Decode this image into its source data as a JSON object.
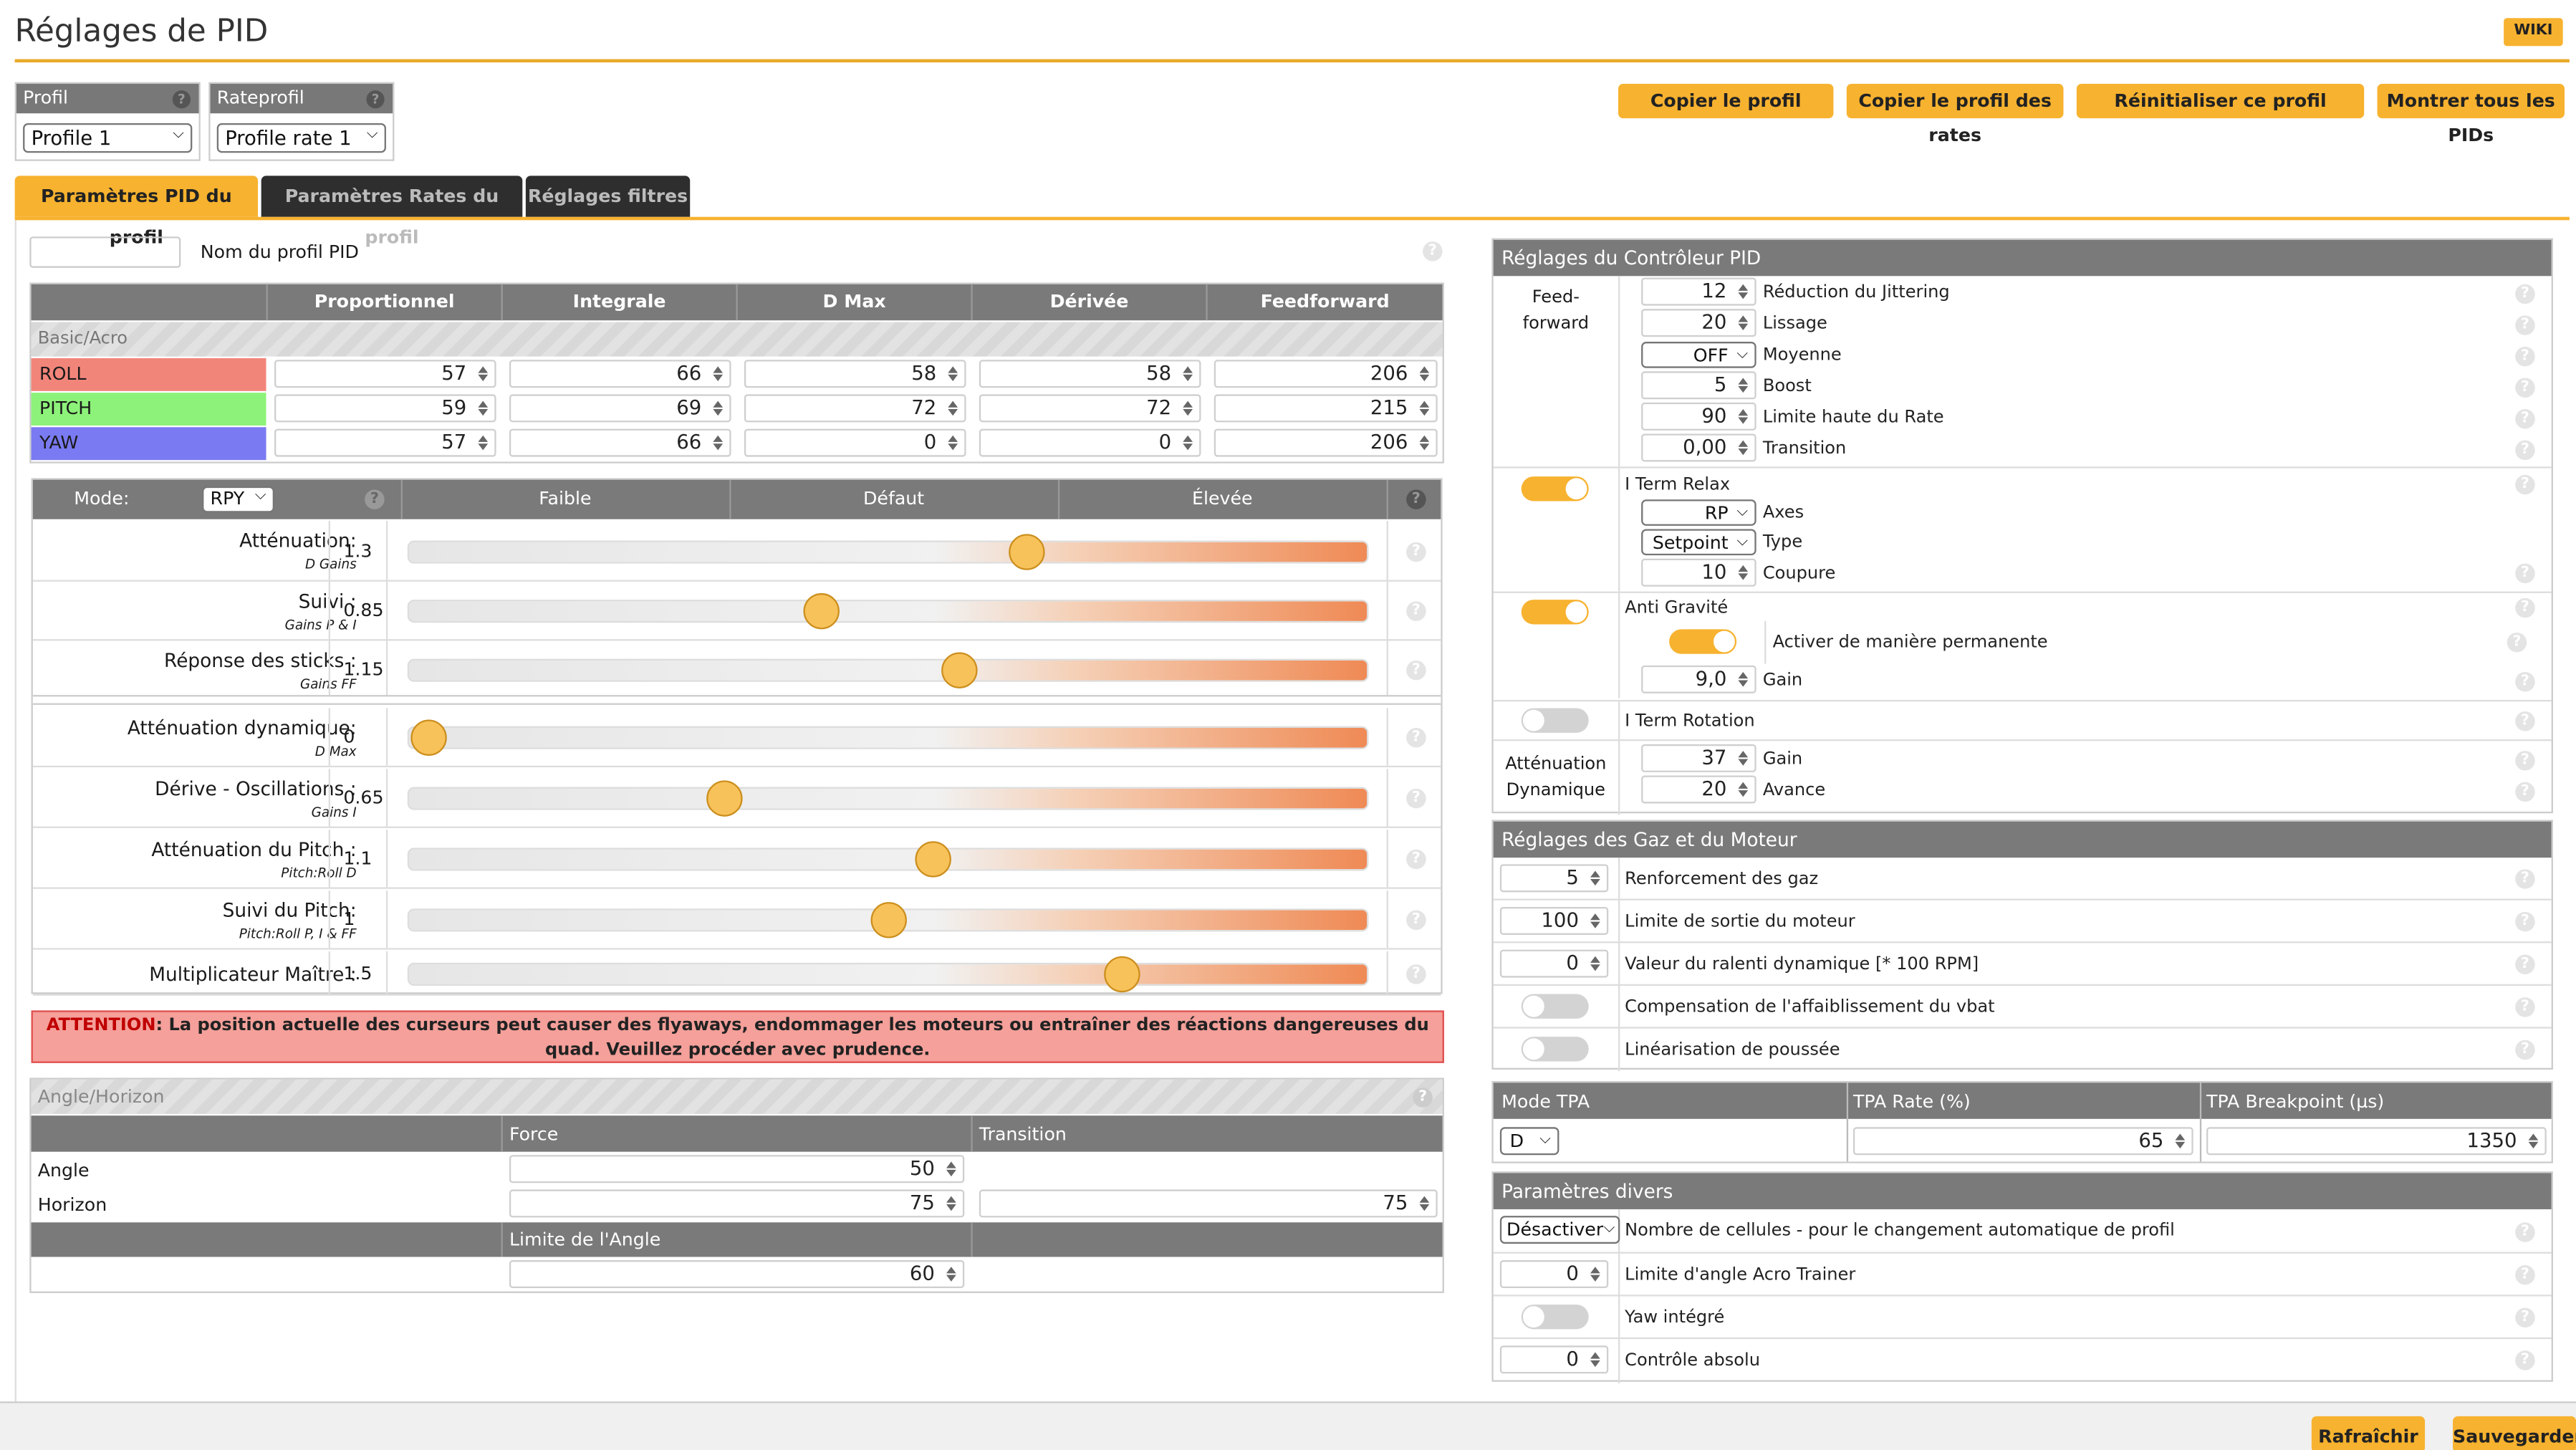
{
  "header": {
    "title": "Réglages de PID",
    "wiki": "WIKI"
  },
  "profile": {
    "label": "Profil",
    "value": "Profile 1"
  },
  "rateprofile": {
    "label": "Rateprofil",
    "value": "Profile rate 1"
  },
  "toolbar": {
    "copy_profile": "Copier le profil",
    "copy_rates": "Copier le profil des rates",
    "reset_profile": "Réinitialiser ce profil",
    "show_all": "Montrer tous les PIDs"
  },
  "tabs": [
    "Paramètres PID du profil",
    "Paramètres Rates du profil",
    "Réglages filtres"
  ],
  "pid_name": {
    "label": "Nom du profil PID",
    "value": ""
  },
  "pid_table": {
    "headers": [
      "Proportionnel",
      "Integrale",
      "D Max",
      "Dérivée",
      "Feedforward"
    ],
    "section": "Basic/Acro",
    "rows": [
      {
        "name": "ROLL",
        "values": [
          "57",
          "66",
          "58",
          "58",
          "206"
        ],
        "color": "#f2857a"
      },
      {
        "name": "PITCH",
        "values": [
          "59",
          "69",
          "72",
          "72",
          "215"
        ],
        "color": "#8df27a"
      },
      {
        "name": "YAW",
        "values": [
          "57",
          "66",
          "0",
          "0",
          "206"
        ],
        "color": "#7a7af2"
      }
    ]
  },
  "sliders": {
    "mode_label": "Mode:",
    "mode_value": "RPY",
    "col_low": "Faible",
    "col_default": "Défaut",
    "col_high": "Élevée",
    "rows": [
      {
        "name": "Atténuation:",
        "sub": "D Gains",
        "value": "1.3",
        "pos": 0.645
      },
      {
        "name": "Suivi :",
        "sub": "Gains P & I",
        "value": "0.85",
        "pos": 0.43
      },
      {
        "name": "Réponse des sticks :",
        "sub": "Gains FF",
        "value": "1.15",
        "pos": 0.575
      },
      {
        "name": "Atténuation dynamique:",
        "sub": "D Max",
        "value": "0",
        "pos": 0.02
      },
      {
        "name": "Dérive - Oscillations :",
        "sub": "Gains I",
        "value": "0.65",
        "pos": 0.33
      },
      {
        "name": "Atténuation du Pitch :",
        "sub": "Pitch:Roll D",
        "value": "1.1",
        "pos": 0.548
      },
      {
        "name": "Suivi du Pitch:",
        "sub": "Pitch:Roll P, I & FF",
        "value": "1",
        "pos": 0.5
      },
      {
        "name": "Multiplicateur Maître :",
        "sub": "",
        "value": "1.5",
        "pos": 0.745
      }
    ]
  },
  "warning": {
    "prefix": "ATTENTION",
    "text": ": La position actuelle des curseurs peut causer des flyaways, endommager les moteurs ou entraîner des réactions dangereuses du quad. Veuillez procéder avec prudence."
  },
  "angle": {
    "title": "Angle/Horizon",
    "force": "Force",
    "transition": "Transition",
    "angle_label": "Angle",
    "angle_value": "50",
    "horizon_label": "Horizon",
    "horizon_value": "75",
    "horizon_transition": "75",
    "limit_label": "Limite de l'Angle",
    "limit_value": "60"
  },
  "controller": {
    "title": "Réglages du Contrôleur PID",
    "ff_label_1": "Feed-",
    "ff_label_2": "forward",
    "ff": [
      {
        "value": "12",
        "label": "Réduction du Jittering"
      },
      {
        "value": "20",
        "label": "Lissage"
      },
      {
        "value": "OFF",
        "label": "Moyenne"
      },
      {
        "value": "5",
        "label": "Boost"
      },
      {
        "value": "90",
        "label": "Limite haute du Rate"
      },
      {
        "value": "0,00",
        "label": "Transition"
      }
    ],
    "iterm_relax": "I Term Relax",
    "axes_value": "RP",
    "axes_label": "Axes",
    "type_value": "Setpoint",
    "type_label": "Type",
    "cutoff_value": "10",
    "cutoff_label": "Coupure",
    "anti_gravity": "Anti Gravité",
    "permanent": "Activer de manière permanente",
    "ag_gain_value": "9,0",
    "ag_gain_label": "Gain",
    "iterm_rotation": "I Term Rotation",
    "dyn_label_1": "Atténuation",
    "dyn_label_2": "Dynamique",
    "dyn_gain_value": "37",
    "dyn_gain_label": "Gain",
    "dyn_adv_value": "20",
    "dyn_adv_label": "Avance"
  },
  "throttle": {
    "title": "Réglages des Gaz et du Moteur",
    "boost_value": "5",
    "boost_label": "Renforcement des gaz",
    "limit_value": "100",
    "limit_label": "Limite de sortie du moteur",
    "idle_value": "0",
    "idle_label": "Valeur du ralenti dynamique [* 100 RPM]",
    "vbat_label": "Compensation de l'affaiblissement du vbat",
    "linear_label": "Linéarisation de poussée"
  },
  "tpa": {
    "mode_label": "Mode TPA",
    "rate_label": "TPA Rate (%)",
    "bp_label": "TPA Breakpoint (µs)",
    "mode_value": "D",
    "rate_value": "65",
    "bp_value": "1350"
  },
  "misc": {
    "title": "Paramètres divers",
    "cells_value": "Désactiver",
    "cells_label": "Nombre de cellules - pour le changement automatique de profil",
    "acro_value": "0",
    "acro_label": "Limite d'angle Acro Trainer",
    "yaw_label": "Yaw intégré",
    "abs_value": "0",
    "abs_label": "Contrôle absolu"
  },
  "footer": {
    "refresh": "Rafraîchir",
    "save": "Sauvegarder"
  },
  "colors": {
    "accent": "#f7b22f",
    "header_gray": "#7a7a7a",
    "warning_bg": "#f5a09a"
  }
}
